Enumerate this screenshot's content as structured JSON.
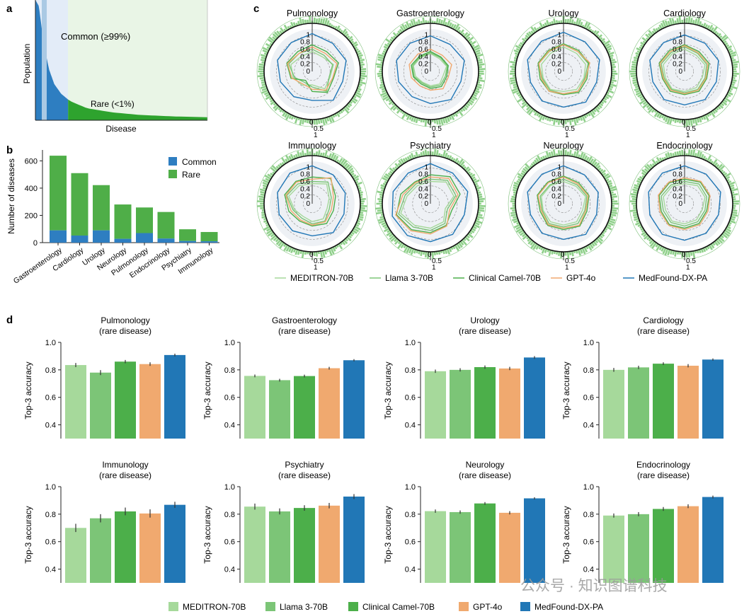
{
  "panels": {
    "a": {
      "letter": "a",
      "ylabel": "Population",
      "xlabel": "Disease",
      "common_label": "Common (≥99%)",
      "rare_label": "Rare (<1%)"
    },
    "b": {
      "letter": "b"
    },
    "c": {
      "letter": "c"
    },
    "d": {
      "letter": "d"
    }
  },
  "watermark": "公众号 · 知识图谱科技",
  "colors": {
    "common_blue": "#2e7ec1",
    "light_blue_band": "#aac9e4",
    "rare_green": "#4fae48",
    "common_bg": "#e3ecf8",
    "rare_bg": "#e9f5e6",
    "spike_green": "#8fd08a",
    "meditron": "#a6d99b",
    "llama": "#7cc577",
    "clinical_camel": "#4caf4a",
    "gpt4o": "#f0a96f",
    "medfound": "#2177b6"
  },
  "models": [
    "MEDITRON-70B",
    "Llama 3-70B",
    "Clinical Camel-70B",
    "GPT-4o",
    "MedFound-DX-PA"
  ],
  "radar_labels": {
    "radial_ticks": [
      "0",
      "0.2",
      "0.4",
      "0.6",
      "0.8",
      "1"
    ],
    "bar_ticks": [
      "0",
      "0.5",
      "1"
    ]
  },
  "chart_data": [
    {
      "type": "area",
      "panel": "a",
      "title": "",
      "xlabel": "Disease",
      "ylabel": "Population",
      "description_regions": [
        "Common (≥99%)",
        "Rare (<1%)"
      ],
      "x": [
        0.0,
        0.02,
        0.05,
        0.08,
        0.11,
        0.15,
        0.2,
        0.3,
        0.45,
        0.6,
        0.8,
        1.0
      ],
      "values": [
        1.0,
        0.95,
        0.62,
        0.42,
        0.3,
        0.22,
        0.16,
        0.1,
        0.065,
        0.045,
        0.032,
        0.025
      ],
      "common_fraction": 0.19
    },
    {
      "type": "bar",
      "panel": "b",
      "categories": [
        "Gastroenterology",
        "Cardiology",
        "Urology",
        "Neurology",
        "Pulmonology",
        "Endocrinology",
        "Psychiatry",
        "Immunology"
      ],
      "series": [
        {
          "name": "Common",
          "values": [
            90,
            52,
            90,
            28,
            70,
            30,
            12,
            10
          ]
        },
        {
          "name": "Rare",
          "values": [
            548,
            458,
            332,
            252,
            188,
            195,
            86,
            68
          ]
        }
      ],
      "stacked": true,
      "ylabel": "Number of diseases",
      "ylim": [
        0,
        680
      ],
      "yticks": [
        0,
        200,
        400,
        600
      ]
    },
    {
      "type": "radar",
      "panel": "c",
      "series_names": [
        "MEDITRON-70B",
        "Llama 3-70B",
        "Clinical Camel-70B",
        "GPT-4o",
        "MedFound-DX-PA"
      ],
      "radial_range": [
        0,
        1
      ],
      "subplots": [
        {
          "title": "Pulmonology",
          "values": [
            [
              0.45,
              0.4,
              0.5,
              0.42,
              0.48,
              0.3,
              0.38,
              0.45,
              0.5,
              0.42
            ],
            [
              0.5,
              0.45,
              0.48,
              0.4,
              0.55,
              0.35,
              0.3,
              0.42,
              0.55,
              0.5
            ],
            [
              0.6,
              0.55,
              0.62,
              0.5,
              0.58,
              0.45,
              0.25,
              0.5,
              0.6,
              0.55
            ],
            [
              0.55,
              0.5,
              0.58,
              0.48,
              0.52,
              0.4,
              0.35,
              0.48,
              0.58,
              0.5
            ],
            [
              0.85,
              0.78,
              0.8,
              0.72,
              0.8,
              0.65,
              0.7,
              0.75,
              0.82,
              0.8
            ]
          ]
        },
        {
          "title": "Gastroenterology",
          "values": [
            [
              0.4,
              0.35,
              0.38,
              0.3,
              0.35,
              0.32,
              0.3,
              0.35,
              0.4,
              0.38
            ],
            [
              0.42,
              0.38,
              0.4,
              0.35,
              0.38,
              0.35,
              0.32,
              0.38,
              0.42,
              0.4
            ],
            [
              0.45,
              0.4,
              0.42,
              0.38,
              0.42,
              0.38,
              0.35,
              0.4,
              0.45,
              0.42
            ],
            [
              0.5,
              0.45,
              0.5,
              0.42,
              0.48,
              0.42,
              0.4,
              0.45,
              0.5,
              0.48
            ],
            [
              0.8,
              0.75,
              0.8,
              0.72,
              0.78,
              0.72,
              0.7,
              0.75,
              0.8,
              0.78
            ]
          ]
        },
        {
          "title": "Urology",
          "values": [
            [
              0.55,
              0.5,
              0.52,
              0.48,
              0.5,
              0.45,
              0.5,
              0.48,
              0.52,
              0.5
            ],
            [
              0.6,
              0.55,
              0.58,
              0.5,
              0.55,
              0.5,
              0.52,
              0.5,
              0.58,
              0.55
            ],
            [
              0.62,
              0.58,
              0.6,
              0.55,
              0.58,
              0.52,
              0.55,
              0.55,
              0.6,
              0.58
            ],
            [
              0.6,
              0.55,
              0.62,
              0.52,
              0.55,
              0.5,
              0.55,
              0.52,
              0.58,
              0.56
            ],
            [
              0.88,
              0.82,
              0.85,
              0.78,
              0.85,
              0.8,
              0.82,
              0.78,
              0.85,
              0.84
            ]
          ]
        },
        {
          "title": "Cardiology",
          "values": [
            [
              0.5,
              0.45,
              0.48,
              0.42,
              0.45,
              0.45,
              0.48,
              0.45,
              0.5,
              0.48
            ],
            [
              0.55,
              0.5,
              0.52,
              0.48,
              0.5,
              0.48,
              0.5,
              0.48,
              0.55,
              0.52
            ],
            [
              0.6,
              0.55,
              0.58,
              0.52,
              0.55,
              0.52,
              0.55,
              0.52,
              0.6,
              0.58
            ],
            [
              0.58,
              0.52,
              0.55,
              0.5,
              0.52,
              0.5,
              0.52,
              0.5,
              0.58,
              0.55
            ],
            [
              0.82,
              0.78,
              0.8,
              0.75,
              0.78,
              0.75,
              0.78,
              0.75,
              0.82,
              0.8
            ]
          ]
        },
        {
          "title": "Immunology",
          "values": [
            [
              0.45,
              0.55,
              0.4,
              0.35,
              0.42,
              0.4,
              0.35,
              0.42,
              0.55,
              0.5
            ],
            [
              0.5,
              0.6,
              0.45,
              0.4,
              0.48,
              0.45,
              0.4,
              0.45,
              0.6,
              0.55
            ],
            [
              0.6,
              0.7,
              0.55,
              0.5,
              0.55,
              0.5,
              0.48,
              0.55,
              0.65,
              0.62
            ],
            [
              0.55,
              0.72,
              0.5,
              0.45,
              0.5,
              0.48,
              0.45,
              0.5,
              0.62,
              0.6
            ],
            [
              0.85,
              0.8,
              0.78,
              0.75,
              0.8,
              0.72,
              0.75,
              0.78,
              0.82,
              0.85
            ]
          ]
        },
        {
          "title": "Psychiatry",
          "values": [
            [
              0.5,
              0.6,
              0.55,
              0.35,
              0.5,
              0.55,
              0.6,
              0.7,
              0.55,
              0.5
            ],
            [
              0.55,
              0.65,
              0.6,
              0.4,
              0.55,
              0.6,
              0.65,
              0.75,
              0.6,
              0.55
            ],
            [
              0.65,
              0.75,
              0.7,
              0.5,
              0.6,
              0.65,
              0.72,
              0.8,
              0.7,
              0.6
            ],
            [
              0.6,
              0.7,
              0.65,
              0.45,
              0.62,
              0.68,
              0.75,
              0.82,
              0.65,
              0.58
            ],
            [
              0.9,
              0.85,
              0.88,
              0.8,
              0.85,
              0.85,
              0.88,
              0.9,
              0.88,
              0.85
            ]
          ]
        },
        {
          "title": "Neurology",
          "values": [
            [
              0.5,
              0.48,
              0.52,
              0.45,
              0.5,
              0.48,
              0.5,
              0.48,
              0.52,
              0.5
            ],
            [
              0.55,
              0.52,
              0.55,
              0.5,
              0.55,
              0.52,
              0.55,
              0.5,
              0.55,
              0.52
            ],
            [
              0.62,
              0.58,
              0.6,
              0.55,
              0.62,
              0.58,
              0.6,
              0.55,
              0.62,
              0.6
            ],
            [
              0.6,
              0.55,
              0.58,
              0.52,
              0.6,
              0.55,
              0.58,
              0.52,
              0.6,
              0.58
            ],
            [
              0.85,
              0.8,
              0.82,
              0.78,
              0.85,
              0.8,
              0.82,
              0.78,
              0.85,
              0.82
            ]
          ]
        },
        {
          "title": "Endocrinology",
          "values": [
            [
              0.45,
              0.5,
              0.48,
              0.42,
              0.45,
              0.45,
              0.48,
              0.45,
              0.5,
              0.48
            ],
            [
              0.5,
              0.55,
              0.52,
              0.48,
              0.5,
              0.5,
              0.52,
              0.5,
              0.55,
              0.52
            ],
            [
              0.55,
              0.6,
              0.58,
              0.52,
              0.55,
              0.55,
              0.58,
              0.55,
              0.6,
              0.58
            ],
            [
              0.58,
              0.62,
              0.6,
              0.55,
              0.58,
              0.58,
              0.6,
              0.58,
              0.62,
              0.6
            ],
            [
              0.85,
              0.82,
              0.85,
              0.8,
              0.82,
              0.82,
              0.85,
              0.82,
              0.85,
              0.85
            ]
          ]
        }
      ]
    },
    {
      "type": "bar",
      "panel": "d",
      "series_names": [
        "MEDITRON-70B",
        "Llama 3-70B",
        "Clinical Camel-70B",
        "GPT-4o",
        "MedFound-DX-PA"
      ],
      "ylabel": "Top-3 accuracy",
      "ylim": [
        0.3,
        1.0
      ],
      "yticks": [
        0.4,
        0.6,
        0.8,
        1.0
      ],
      "subplots": [
        {
          "title": "Pulmonology",
          "subtitle": "(rare disease)",
          "values": [
            0.835,
            0.78,
            0.86,
            0.842,
            0.908
          ],
          "errors": [
            0.015,
            0.018,
            0.012,
            0.013,
            0.01
          ]
        },
        {
          "title": "Gastroenterology",
          "subtitle": "(rare disease)",
          "values": [
            0.756,
            0.725,
            0.755,
            0.812,
            0.87
          ],
          "errors": [
            0.01,
            0.01,
            0.01,
            0.01,
            0.008
          ]
        },
        {
          "title": "Urology",
          "subtitle": "(rare disease)",
          "values": [
            0.79,
            0.8,
            0.82,
            0.81,
            0.89
          ],
          "errors": [
            0.012,
            0.012,
            0.012,
            0.012,
            0.01
          ]
        },
        {
          "title": "Cardiology",
          "subtitle": "(rare disease)",
          "values": [
            0.8,
            0.818,
            0.845,
            0.83,
            0.875
          ],
          "errors": [
            0.014,
            0.012,
            0.01,
            0.012,
            0.008
          ]
        },
        {
          "title": "Immunology",
          "subtitle": "(rare disease)",
          "values": [
            0.7,
            0.77,
            0.82,
            0.805,
            0.868
          ],
          "errors": [
            0.03,
            0.03,
            0.028,
            0.03,
            0.022
          ]
        },
        {
          "title": "Psychiatry",
          "subtitle": "(rare disease)",
          "values": [
            0.855,
            0.82,
            0.845,
            0.862,
            0.928
          ],
          "errors": [
            0.022,
            0.022,
            0.02,
            0.02,
            0.018
          ]
        },
        {
          "title": "Neurology",
          "subtitle": "(rare disease)",
          "values": [
            0.822,
            0.815,
            0.878,
            0.81,
            0.915
          ],
          "errors": [
            0.012,
            0.012,
            0.01,
            0.012,
            0.008
          ]
        },
        {
          "title": "Endocrinology",
          "subtitle": "(rare disease)",
          "values": [
            0.79,
            0.8,
            0.838,
            0.858,
            0.925
          ],
          "errors": [
            0.015,
            0.015,
            0.014,
            0.014,
            0.01
          ]
        }
      ]
    }
  ]
}
